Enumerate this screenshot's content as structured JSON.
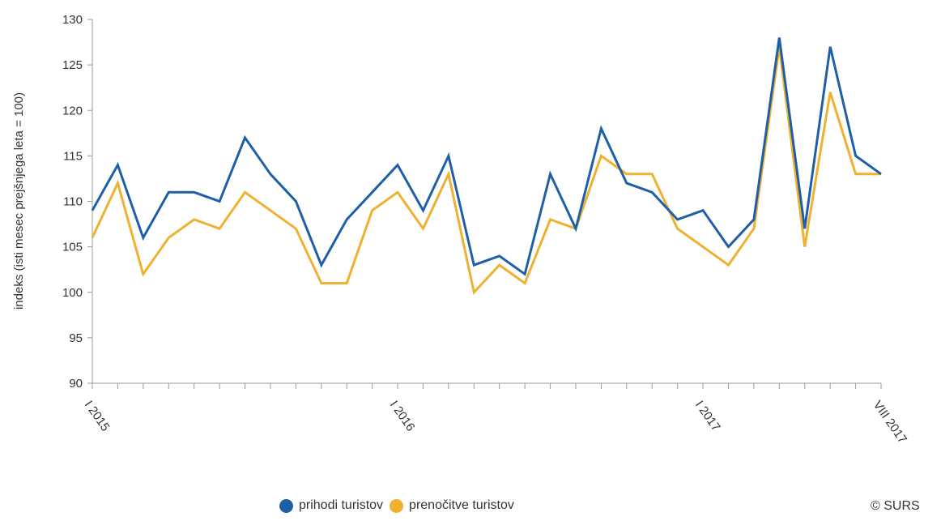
{
  "chart_data": {
    "type": "line",
    "ylabel": "indeks (isti mesec prejšnjega leta = 100)",
    "ylim": [
      90,
      130
    ],
    "yticks": [
      90,
      95,
      100,
      105,
      110,
      115,
      120,
      125,
      130
    ],
    "x": [
      "I 2015",
      "II 2015",
      "III 2015",
      "IV 2015",
      "V 2015",
      "VI 2015",
      "VII 2015",
      "VIII 2015",
      "IX 2015",
      "X 2015",
      "XI 2015",
      "XII 2015",
      "I 2016",
      "II 2016",
      "III 2016",
      "IV 2016",
      "V 2016",
      "VI 2016",
      "VII 2016",
      "VIII 2016",
      "IX 2016",
      "X 2016",
      "XI 2016",
      "XII 2016",
      "I 2017",
      "II 2017",
      "III 2017",
      "IV 2017",
      "V 2017",
      "VI 2017",
      "VII 2017",
      "VIII 2017"
    ],
    "x_tick_labels": [
      {
        "index": 0,
        "label": "I 2015"
      },
      {
        "index": 12,
        "label": "I 2016"
      },
      {
        "index": 24,
        "label": "I 2017"
      },
      {
        "index": 31,
        "label": "VIII 2017"
      }
    ],
    "grid": false,
    "legend_position": "bottom",
    "series": [
      {
        "name": "prihodi turistov",
        "color": "#1f5fa8",
        "values": [
          109,
          114,
          106,
          111,
          111,
          110,
          117,
          113,
          110,
          103,
          108,
          111,
          114,
          109,
          115,
          103,
          104,
          102,
          113,
          107,
          118,
          112,
          111,
          108,
          109,
          105,
          108,
          128,
          107,
          127,
          115,
          113
        ]
      },
      {
        "name": "prenočitve turistov",
        "color": "#f0b030",
        "values": [
          106,
          112,
          102,
          106,
          108,
          107,
          111,
          109,
          107,
          101,
          101,
          109,
          111,
          107,
          113,
          100,
          103,
          101,
          108,
          107,
          115,
          113,
          113,
          107,
          105,
          103,
          107,
          127,
          105,
          122,
          113,
          113
        ]
      }
    ]
  },
  "legend": {
    "item1_label": "prihodi turistov",
    "item2_label": "prenočitve turistov",
    "item1_color": "#1f5fa8",
    "item2_color": "#f0b030"
  },
  "credit": "© SURS"
}
